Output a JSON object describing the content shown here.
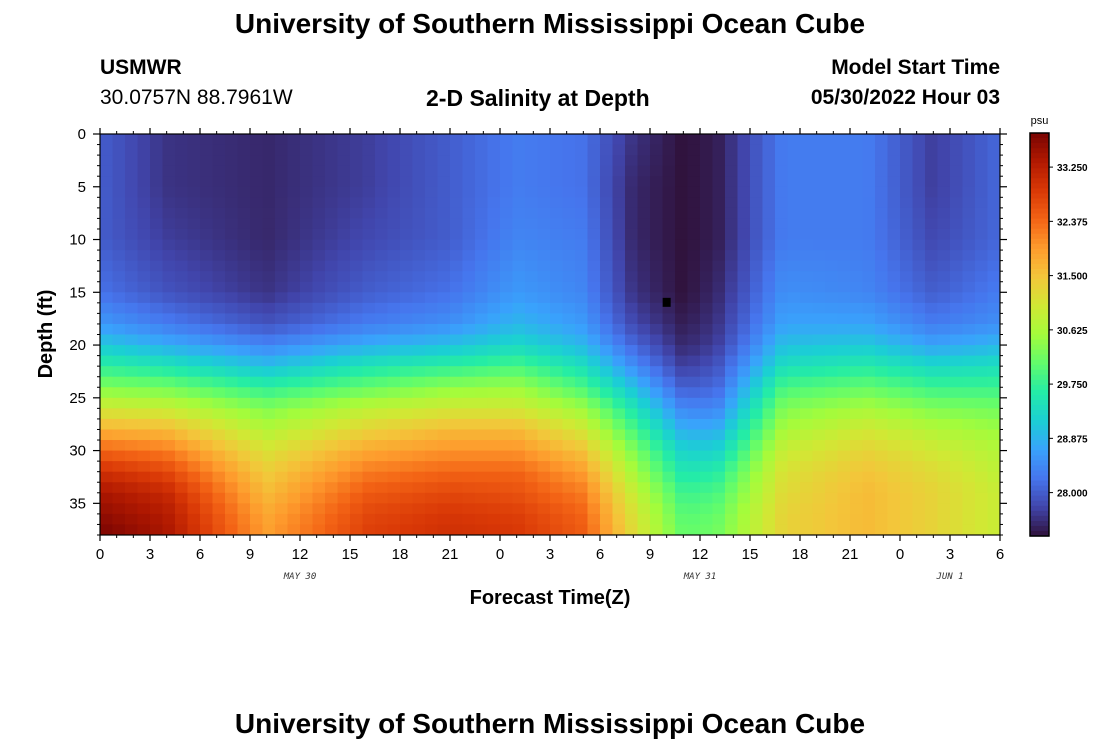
{
  "page": {
    "title": "University of Southern Mississippi Ocean Cube",
    "footer_title": "University of Southern Mississippi Ocean Cube",
    "station": {
      "name": "USMWR",
      "coords": "30.0757N  88.7961W"
    },
    "plot_title": "2-D Salinity at Depth",
    "model_start": {
      "label": "Model Start Time",
      "value": "05/30/2022 Hour 03"
    }
  },
  "chart_data": {
    "type": "heatmap",
    "title": "2-D Salinity at Depth",
    "xlabel": "Forecast Time(Z)",
    "ylabel": "Depth (ft)",
    "x_unit": "hours from model start",
    "xlim": [
      0,
      54
    ],
    "ylim": [
      38,
      0
    ],
    "x_tick_values": [
      0,
      3,
      6,
      9,
      12,
      15,
      18,
      21,
      24,
      27,
      30,
      33,
      36,
      39,
      42,
      45,
      48,
      51,
      54
    ],
    "x_tick_labels": [
      "0",
      "3",
      "6",
      "9",
      "12",
      "15",
      "18",
      "21",
      "0",
      "3",
      "6",
      "9",
      "12",
      "15",
      "18",
      "21",
      "0",
      "3",
      "6"
    ],
    "y_tick_values": [
      0,
      5,
      10,
      15,
      20,
      25,
      30,
      35
    ],
    "y_tick_labels": [
      "0",
      "5",
      "10",
      "15",
      "20",
      "25",
      "30",
      "35"
    ],
    "date_labels": [
      {
        "label": "MAY 30",
        "at_hour": 12
      },
      {
        "label": "MAY 31",
        "at_hour": 36
      },
      {
        "label": "JUN 1",
        "at_hour": 51
      }
    ],
    "colorbar": {
      "unit": "psu",
      "min": 27.3,
      "max": 33.8,
      "tick_values": [
        28.0,
        28.875,
        29.75,
        30.625,
        31.5,
        32.375,
        33.25
      ],
      "tick_labels": [
        "28.000",
        "28.875",
        "29.750",
        "30.625",
        "31.500",
        "32.375",
        "33.250"
      ],
      "colors": [
        "#30123b",
        "#4145ab",
        "#4675ed",
        "#39a2fc",
        "#1bcfd4",
        "#24eca6",
        "#61fc6c",
        "#a4fc3b",
        "#d1e834",
        "#f3c63a",
        "#fe9b2d",
        "#f36315",
        "#d93806",
        "#b11901",
        "#7a0402"
      ]
    },
    "salinity_profiles": {
      "description": "Approximate salinity (psu) at each depth (ft) for each forecast hour",
      "depths_ft": [
        0,
        5,
        10,
        15,
        18,
        20,
        22,
        24,
        26,
        28,
        30,
        32,
        34,
        36,
        38
      ],
      "series": [
        {
          "hour": 0,
          "values": [
            28.0,
            28.0,
            28.0,
            28.2,
            28.6,
            29.1,
            29.7,
            30.3,
            31.0,
            31.7,
            32.4,
            33.0,
            33.4,
            33.6,
            33.8
          ]
        },
        {
          "hour": 4,
          "values": [
            27.6,
            27.6,
            27.7,
            27.9,
            28.3,
            28.8,
            29.5,
            30.2,
            30.9,
            31.6,
            32.2,
            32.7,
            33.1,
            33.3,
            33.4
          ]
        },
        {
          "hour": 10,
          "values": [
            27.5,
            27.5,
            27.5,
            27.6,
            27.9,
            28.4,
            29.0,
            29.7,
            30.3,
            30.7,
            31.1,
            31.4,
            31.6,
            31.8,
            31.9
          ]
        },
        {
          "hour": 16,
          "values": [
            27.7,
            27.7,
            27.8,
            28.0,
            28.3,
            28.8,
            29.5,
            30.1,
            30.8,
            31.3,
            31.8,
            32.2,
            32.5,
            32.7,
            32.8
          ]
        },
        {
          "hour": 21,
          "values": [
            28.0,
            28.0,
            28.0,
            28.2,
            28.5,
            29.0,
            29.7,
            30.4,
            31.0,
            31.6,
            32.0,
            32.4,
            32.7,
            32.9,
            33.0
          ]
        },
        {
          "hour": 25,
          "values": [
            28.3,
            28.3,
            28.4,
            28.6,
            28.9,
            29.3,
            29.9,
            30.5,
            31.0,
            31.6,
            32.0,
            32.4,
            32.6,
            32.8,
            32.9
          ]
        },
        {
          "hour": 29,
          "values": [
            28.2,
            28.2,
            28.3,
            28.4,
            28.6,
            28.9,
            29.4,
            29.9,
            30.5,
            31.0,
            31.5,
            31.9,
            32.2,
            32.4,
            32.5
          ]
        },
        {
          "hour": 32,
          "values": [
            27.6,
            27.5,
            27.5,
            27.6,
            27.8,
            28.1,
            28.5,
            29.0,
            29.5,
            29.9,
            30.3,
            30.6,
            30.9,
            31.1,
            31.2
          ]
        },
        {
          "hour": 35,
          "values": [
            27.3,
            27.3,
            27.3,
            27.3,
            27.4,
            27.5,
            27.7,
            28.0,
            28.4,
            28.8,
            29.2,
            29.5,
            29.8,
            30.0,
            30.1
          ]
        },
        {
          "hour": 37,
          "values": [
            27.4,
            27.4,
            27.4,
            27.5,
            27.6,
            27.7,
            27.9,
            28.1,
            28.4,
            28.8,
            29.2,
            29.6,
            29.9,
            30.1,
            30.2
          ]
        },
        {
          "hour": 41,
          "values": [
            28.3,
            28.3,
            28.3,
            28.5,
            28.7,
            29.0,
            29.4,
            29.9,
            30.3,
            30.6,
            30.9,
            31.1,
            31.2,
            31.3,
            31.3
          ]
        },
        {
          "hour": 46,
          "values": [
            28.3,
            28.3,
            28.3,
            28.4,
            28.7,
            29.1,
            29.6,
            30.1,
            30.6,
            31.0,
            31.3,
            31.5,
            31.6,
            31.6,
            31.6
          ]
        },
        {
          "hour": 50,
          "values": [
            27.7,
            27.7,
            27.8,
            28.0,
            28.3,
            28.7,
            29.3,
            29.8,
            30.3,
            30.7,
            31.0,
            31.2,
            31.3,
            31.3,
            31.3
          ]
        },
        {
          "hour": 54,
          "values": [
            28.1,
            28.1,
            28.1,
            28.3,
            28.5,
            28.9,
            29.4,
            29.8,
            30.2,
            30.5,
            30.7,
            30.8,
            30.9,
            30.9,
            30.9
          ]
        }
      ]
    },
    "marker": {
      "hour": 34,
      "depth_ft": 16,
      "label": ""
    }
  }
}
